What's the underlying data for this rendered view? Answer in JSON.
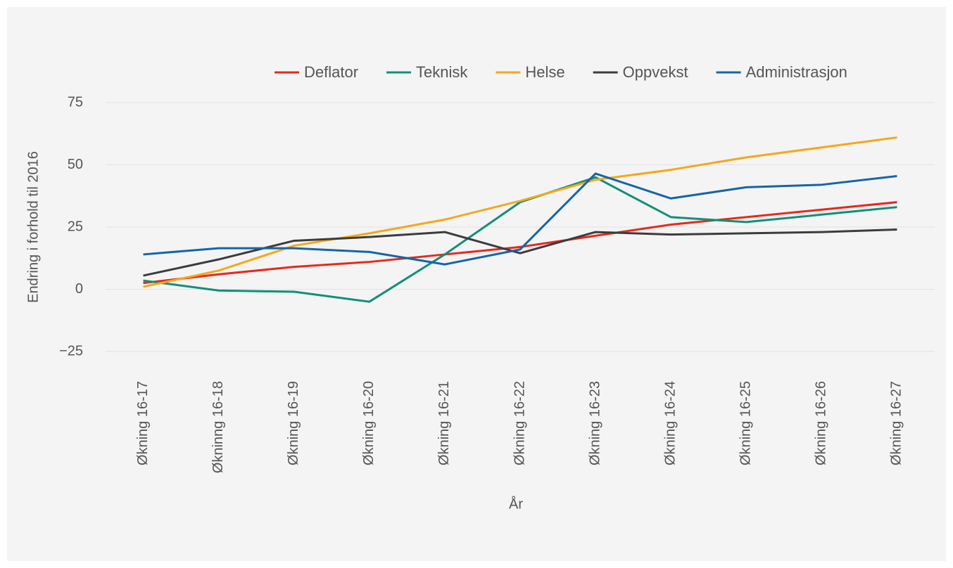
{
  "chart_data": {
    "type": "line",
    "x_label": "År",
    "y_label": "Endring i forhold til 2016",
    "categories": [
      "Økning 16-17",
      "Økninng 16-18",
      "Økning 16-19",
      "Økning 16-20",
      "Økning 16-21",
      "Økning 16-22",
      "Økning 16-23",
      "Økning 16-24",
      "Økning 16-25",
      "Økning 16-26",
      "Økning 16-27"
    ],
    "series": [
      {
        "name": "Deflator",
        "color": "#e8291c",
        "values": [
          2.5,
          6,
          9,
          11,
          14,
          17,
          21.5,
          26,
          29,
          32,
          35
        ]
      },
      {
        "name": "Teknisk",
        "color": "#10907a",
        "values": [
          3.5,
          -0.5,
          -1,
          -5,
          14,
          35,
          45,
          29,
          27,
          30,
          33
        ]
      },
      {
        "name": "Helse",
        "color": "#f4a81d",
        "values": [
          1,
          7.5,
          17.5,
          22.5,
          28,
          35.5,
          44,
          48,
          53,
          57,
          61
        ]
      },
      {
        "name": "Oppvekst",
        "color": "#3c3c3c",
        "values": [
          5.5,
          12,
          19.5,
          21,
          23,
          14.5,
          23,
          22,
          22.5,
          23,
          24
        ]
      },
      {
        "name": "Administrasjon",
        "color": "#1565a8",
        "values": [
          14,
          16.5,
          16.5,
          15,
          10,
          16,
          46.5,
          36.5,
          41,
          42,
          45.5
        ]
      }
    ],
    "ylim": [
      -25,
      75
    ],
    "yticks": [
      {
        "value": -25,
        "label": "−25"
      },
      0,
      25,
      50,
      75
    ],
    "grid": true,
    "legend": "top-right"
  }
}
